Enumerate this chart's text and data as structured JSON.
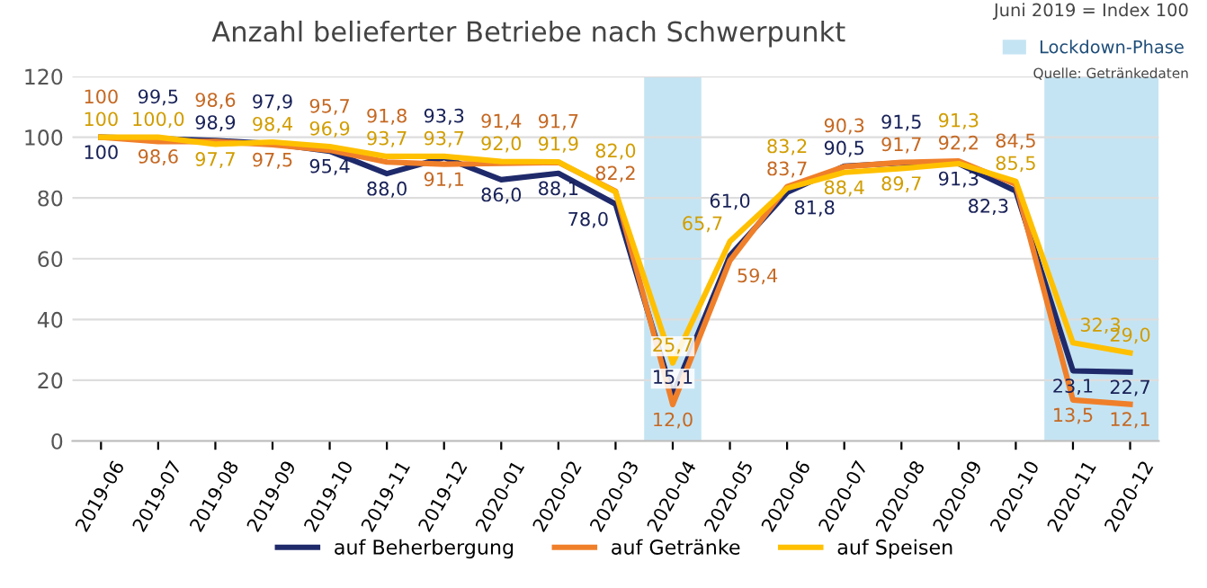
{
  "chart_data": {
    "type": "line",
    "title": "Anzahl belieferter Betriebe nach Schwerpunkt",
    "categories": [
      "2019-06",
      "2019-07",
      "2019-08",
      "2019-09",
      "2019-10",
      "2019-11",
      "2019-12",
      "2020-01",
      "2020-02",
      "2020-03",
      "2020-04",
      "2020-05",
      "2020-06",
      "2020-07",
      "2020-08",
      "2020-09",
      "2020-10",
      "2020-11",
      "2020-12"
    ],
    "series": [
      {
        "name": "auf Speisen",
        "color": "#ffc000",
        "values": [
          100,
          100.0,
          97.7,
          98.4,
          96.9,
          93.7,
          93.7,
          92.0,
          91.9,
          82.0,
          25.7,
          65.7,
          83.2,
          88.4,
          89.7,
          91.3,
          85.5,
          32.3,
          29.0
        ],
        "value_labels": [
          "100",
          "100,0",
          "97,7",
          "98,4",
          "96,9",
          "93,7",
          "93,7",
          "92,0",
          "91,9",
          "82,0",
          "25,7",
          "65,7",
          "83,2",
          "88,4",
          "89,7",
          "91,3",
          "85,5",
          "32,3",
          "29,0"
        ]
      },
      {
        "name": "auf Getränke",
        "color": "#f07f2a",
        "values": [
          100,
          98.6,
          98.6,
          97.5,
          95.7,
          91.8,
          91.1,
          91.4,
          91.7,
          82.2,
          12.0,
          59.4,
          83.7,
          90.3,
          91.7,
          92.2,
          84.5,
          13.5,
          12.1
        ],
        "value_labels": [
          "100",
          "98,6",
          "98,6",
          "97,5",
          "95,7",
          "91,8",
          "91,1",
          "91,4",
          "91,7",
          "82,2",
          "12,0",
          "59,4",
          "83,7",
          "90,3",
          "91,7",
          "92,2",
          "84,5",
          "13,5",
          "12,1"
        ]
      },
      {
        "name": "auf Beherbergung",
        "color": "#1f2a6b",
        "values": [
          100,
          99.5,
          98.9,
          97.9,
          95.4,
          88.0,
          93.3,
          86.0,
          88.1,
          78.0,
          15.1,
          61.0,
          81.8,
          90.5,
          91.5,
          91.3,
          82.3,
          23.1,
          22.7
        ],
        "value_labels": [
          "100",
          "99,5",
          "98,9",
          "97,9",
          "95,4",
          "88,0",
          "93,3",
          "86,0",
          "88,1",
          "78,0",
          "15,1",
          "61,0",
          "81,8",
          "90,5",
          "91,5",
          "91,3",
          "82,3",
          "23,1",
          "22,7"
        ]
      }
    ],
    "ylim": [
      0,
      120
    ],
    "yticks": [
      0,
      20,
      40,
      60,
      80,
      100,
      120
    ],
    "grid": "y",
    "legend": "bottom",
    "marker": "none",
    "line_style": "solid",
    "bands": [
      {
        "axis": "x",
        "from": "2020-04",
        "to": "2020-04",
        "label": "Lockdown-Phase",
        "color": "#c5e4f3"
      },
      {
        "axis": "x",
        "from": "2020-11",
        "to": "2020-12",
        "color": "#c5e4f3"
      }
    ],
    "annotations": [
      "Juni 2019 = Index 100",
      "Quelle: Getränkedaten"
    ]
  }
}
